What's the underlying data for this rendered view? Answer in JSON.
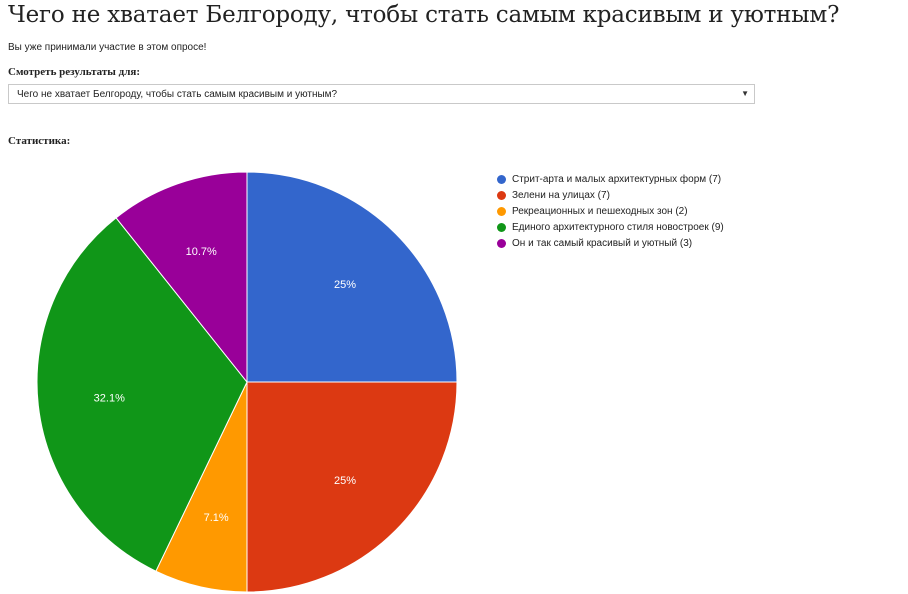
{
  "page": {
    "title": "Чего не хватает Белгороду, чтобы стать самым красивым и уютным?",
    "participated_note": "Вы уже принимали участие в этом опросе!",
    "results_for_label": "Смотреть результаты для:",
    "selected_poll": "Чего не хватает Белгороду, чтобы стать самым красивым и уютным?",
    "select_arrow": "▼",
    "stats_label": "Статистика:"
  },
  "chart_data": {
    "type": "pie",
    "title": "",
    "slices": [
      {
        "label": "Стрит-арта и малых архитектурных форм",
        "count": 7,
        "percent_label": "25%",
        "color": "#3366cc",
        "legend_text": "Стрит-арта и малых архитектурных форм (7)"
      },
      {
        "label": "Зелени на улицах",
        "count": 7,
        "percent_label": "25%",
        "color": "#dc3912",
        "legend_text": "Зелени на улицах (7)"
      },
      {
        "label": "Рекреационных и пешеходных зон",
        "count": 2,
        "percent_label": "7.1%",
        "color": "#ff9900",
        "legend_text": "Рекреационных и пешеходных зон (2)"
      },
      {
        "label": "Единого архитектурного стиля новостроек",
        "count": 9,
        "percent_label": "32.1%",
        "color": "#109618",
        "legend_text": "Единого архитектурного стиля новостроек (9)"
      },
      {
        "label": "Он и так самый красивый и уютный",
        "count": 3,
        "percent_label": "10.7%",
        "color": "#990099",
        "legend_text": "Он и так самый красивый и уютный (3)"
      }
    ],
    "legend_position": "right"
  }
}
